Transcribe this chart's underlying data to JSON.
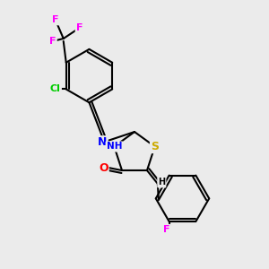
{
  "bg_color": "#ebebeb",
  "bond_color": "#000000",
  "atom_colors": {
    "F": "#ff00ff",
    "Cl": "#00cc00",
    "N": "#0000ff",
    "O": "#ff0000",
    "S": "#ccaa00",
    "H": "#000000",
    "C": "#000000"
  },
  "title": "",
  "figsize": [
    3.0,
    3.0
  ],
  "dpi": 100
}
